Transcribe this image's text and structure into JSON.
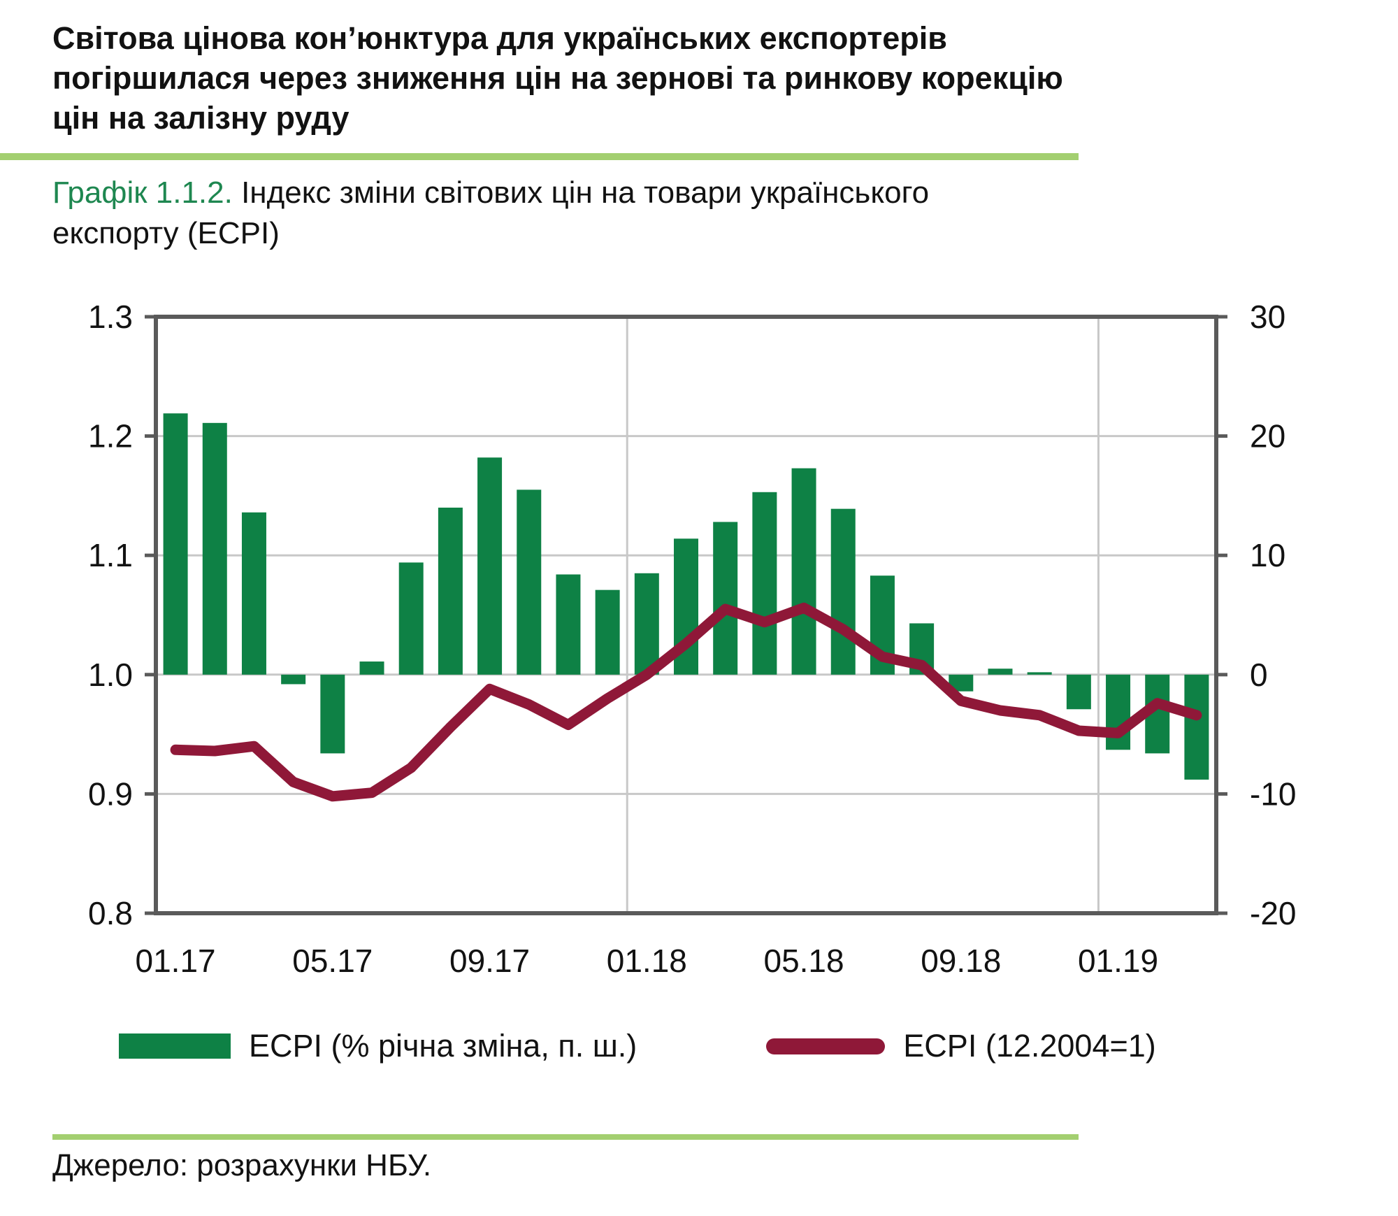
{
  "page": {
    "headline_lines": [
      "Світова цінова кон’юнктура для українських експортерів",
      "погіршилася через зниження цін на зернові та ринкову корекцію",
      "цін на залізну руду"
    ],
    "source_note": "Джерело: розрахунки НБУ.",
    "accent_rule_color": "#A3CF70",
    "title_prefix_color": "#1E8750"
  },
  "chart": {
    "title_prefix": "Графік 1.1.2.",
    "title_rest": "Індекс  зміни світових цін на товари українського експорту (ECPI)",
    "legend": [
      {
        "label": "ECPI (% річна зміна, п. ш.)",
        "marker": "bar-swatch",
        "color": "#0E8145"
      },
      {
        "label": "ECPI (12.2004=1)",
        "marker": "line-swatch",
        "color": "#8F1838"
      }
    ]
  },
  "chart_data": {
    "type": "combo bar+line, dual axis",
    "categories": [
      "01.17",
      "02.17",
      "03.17",
      "04.17",
      "05.17",
      "06.17",
      "07.17",
      "08.17",
      "09.17",
      "10.17",
      "11.17",
      "12.17",
      "01.18",
      "02.18",
      "03.18",
      "04.18",
      "05.18",
      "06.18",
      "07.18",
      "08.18",
      "09.18",
      "10.18",
      "11.18",
      "12.18",
      "01.19",
      "02.19",
      "03.19"
    ],
    "x_tick_labels": [
      "01.17",
      "05.17",
      "09.17",
      "01.18",
      "05.18",
      "09.18",
      "01.19"
    ],
    "x_tick_every": 4,
    "year_separator_indices": [
      12,
      24
    ],
    "series": [
      {
        "name": "ECPI (% річна зміна, п. ш.)",
        "type": "bar",
        "axis": "right",
        "color": "#0E8145",
        "values": [
          21.9,
          21.1,
          13.6,
          -0.8,
          -6.6,
          1.1,
          9.4,
          14.0,
          18.2,
          15.5,
          8.4,
          7.1,
          8.5,
          11.4,
          12.8,
          15.3,
          17.3,
          13.9,
          8.3,
          4.3,
          -1.4,
          0.5,
          0.2,
          -2.9,
          -6.3,
          -6.6,
          -8.8
        ]
      },
      {
        "name": "ECPI (12.2004=1)",
        "type": "line",
        "axis": "left",
        "color": "#8F1838",
        "values": [
          0.937,
          0.936,
          0.94,
          0.91,
          0.898,
          0.901,
          0.922,
          0.956,
          0.988,
          0.975,
          0.958,
          0.98,
          1.0,
          1.026,
          1.055,
          1.044,
          1.056,
          1.038,
          1.015,
          1.008,
          0.978,
          0.97,
          0.966,
          0.953,
          0.951,
          0.976,
          0.966
        ]
      }
    ],
    "left_axis": {
      "min": 0.8,
      "max": 1.3,
      "ticks": [
        1.3,
        1.2,
        1.1,
        1.0,
        0.9,
        0.8
      ],
      "tick_labels": [
        "1.3",
        "1.2",
        "1.1",
        "1.0",
        "0.9",
        "0.8"
      ]
    },
    "right_axis": {
      "min": -20,
      "max": 30,
      "ticks": [
        30,
        20,
        10,
        0,
        -10,
        -20
      ],
      "tick_labels": [
        "30",
        "20",
        "10",
        "0",
        "-10",
        "-20"
      ]
    },
    "grid": {
      "horizontal_at_left_values": [
        1.2,
        1.1,
        1.0,
        0.9
      ],
      "color": "#C8C8C8",
      "border_color": "#5A5A5A"
    },
    "legend_position": "bottom"
  }
}
